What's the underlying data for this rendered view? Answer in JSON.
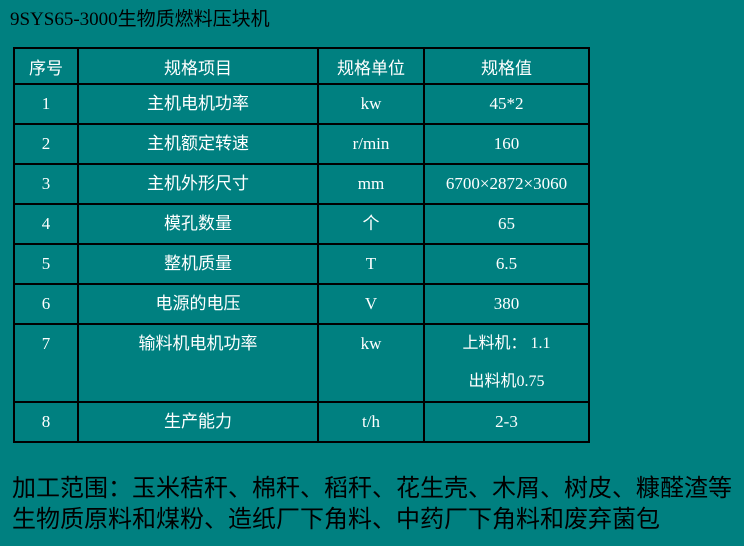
{
  "colors": {
    "background": "#008080",
    "table_border": "#000000",
    "table_text": "#ffffff",
    "body_text": "#000000"
  },
  "title": "9SYS65-3000生物质燃料压块机",
  "table": {
    "headers": [
      "序号",
      "规格项目",
      "规格单位",
      "规格值"
    ],
    "rows": [
      {
        "no": "1",
        "item": "主机电机功率",
        "unit": "kw",
        "value": "45*2"
      },
      {
        "no": "2",
        "item": "主机额定转速",
        "unit": "r/min",
        "value": "160"
      },
      {
        "no": "3",
        "item": "主机外形尺寸",
        "unit": "mm",
        "value": "6700×2872×3060"
      },
      {
        "no": "4",
        "item": "模孔数量",
        "unit": "个",
        "value": "65"
      },
      {
        "no": "5",
        "item": "整机质量",
        "unit": "T",
        "value": "6.5"
      },
      {
        "no": "6",
        "item": "电源的电压",
        "unit": "V",
        "value": "380"
      },
      {
        "no": "7",
        "item": "输料机电机功率",
        "unit": "kw",
        "value": "上料机： 1.1",
        "value2": "出料机0.75"
      },
      {
        "no": "8",
        "item": "生产能力",
        "unit": "t/h",
        "value": "2-3"
      }
    ]
  },
  "footer": {
    "line1": "加工范围：玉米秸秆、棉秆、稻秆、花生壳、木屑、树皮、糠醛渣等",
    "line2": "生物质原料和煤粉、造纸厂下角料、中药厂下角料和废弃菌包"
  }
}
